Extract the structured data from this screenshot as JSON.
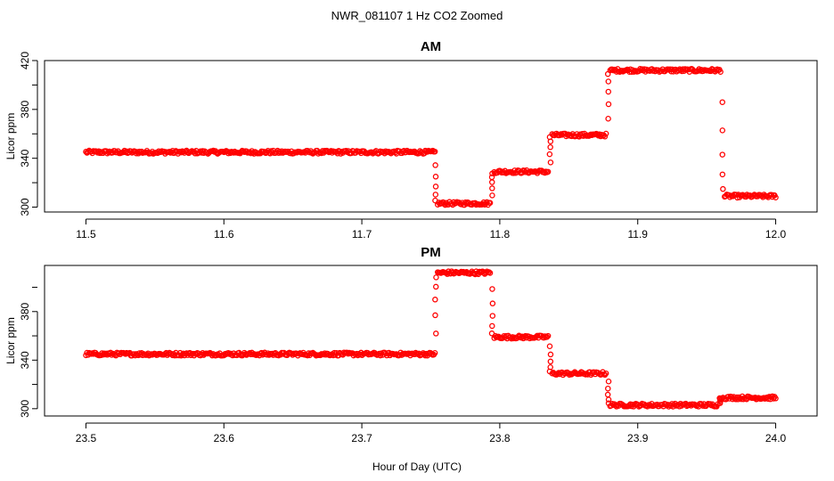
{
  "chart_data": {
    "type": "scatter",
    "title": "NWR_081107  1 Hz CO2 Zoomed",
    "xlabel": "Hour of Day (UTC)",
    "marker_color": "#ff0000",
    "panels": [
      {
        "id": "am",
        "title": "AM",
        "ylabel": "Licor ppm",
        "xlim": [
          11.47,
          12.03
        ],
        "ylim": [
          296,
          420
        ],
        "xticks": [
          11.5,
          11.6,
          11.7,
          11.8,
          11.9,
          12.0
        ],
        "xtick_labels": [
          "11.5",
          "11.6",
          "11.7",
          "11.8",
          "11.9",
          "12.0"
        ],
        "yticks": [
          300,
          340,
          380,
          420
        ],
        "ytick_labels": [
          "300",
          "340",
          "380",
          "420"
        ],
        "segments": [
          {
            "x0": 11.5,
            "x1": 11.753,
            "y": 345
          },
          {
            "x0": 11.755,
            "x1": 11.793,
            "y": 303
          },
          {
            "x0": 11.796,
            "x1": 11.835,
            "y": 329
          },
          {
            "x0": 11.838,
            "x1": 11.877,
            "y": 359
          },
          {
            "x0": 11.88,
            "x1": 11.96,
            "y": 412
          },
          {
            "x0": 11.963,
            "x1": 12.0,
            "y": 309
          }
        ],
        "transitions": [
          {
            "x": 11.7535,
            "from": 345,
            "to": 303
          },
          {
            "x": 11.7945,
            "from": 303,
            "to": 329
          },
          {
            "x": 11.8365,
            "from": 329,
            "to": 359
          },
          {
            "x": 11.8785,
            "from": 359,
            "to": 412
          },
          {
            "x": 11.9615,
            "from": 412,
            "to": 309
          }
        ]
      },
      {
        "id": "pm",
        "title": "PM",
        "ylabel": "Licor ppm",
        "xlim": [
          23.47,
          24.03
        ],
        "ylim": [
          294,
          418
        ],
        "xticks": [
          23.5,
          23.6,
          23.7,
          23.8,
          23.9,
          24.0
        ],
        "xtick_labels": [
          "23.5",
          "23.6",
          "23.7",
          "23.8",
          "23.9",
          "24.0"
        ],
        "yticks": [
          300,
          340,
          380
        ],
        "ytick_labels": [
          "300",
          "340",
          "380"
        ],
        "segments": [
          {
            "x0": 23.5,
            "x1": 23.753,
            "y": 345
          },
          {
            "x0": 23.755,
            "x1": 23.793,
            "y": 412
          },
          {
            "x0": 23.796,
            "x1": 23.835,
            "y": 359
          },
          {
            "x0": 23.838,
            "x1": 23.877,
            "y": 329
          },
          {
            "x0": 23.88,
            "x1": 23.958,
            "y": 303
          },
          {
            "x0": 23.961,
            "x1": 24.0,
            "y": 309
          }
        ],
        "transitions": [
          {
            "x": 23.7535,
            "from": 345,
            "to": 412
          },
          {
            "x": 23.7945,
            "from": 412,
            "to": 359
          },
          {
            "x": 23.8365,
            "from": 359,
            "to": 329
          },
          {
            "x": 23.8785,
            "from": 329,
            "to": 303
          },
          {
            "x": 23.9595,
            "from": 303,
            "to": 309
          }
        ]
      }
    ]
  }
}
